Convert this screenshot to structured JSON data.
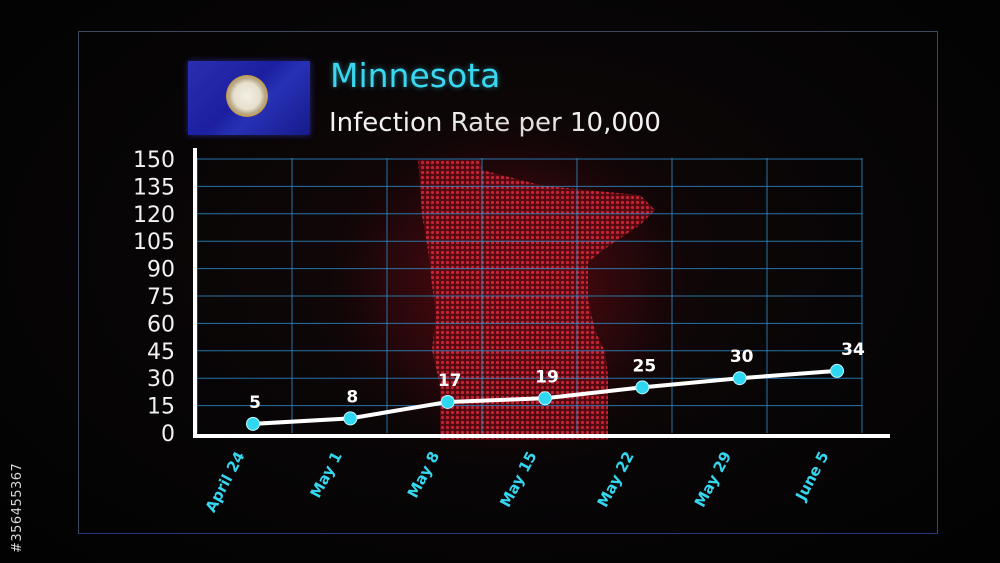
{
  "header": {
    "title": "Minnesota",
    "subtitle": "Infection Rate per 10,000"
  },
  "watermark_id": "#356455367",
  "colors": {
    "accent": "#3ad8f0",
    "grid": "#2e8fd0",
    "map": "#c0182a",
    "point": "#2fd8f0",
    "line": "#ffffff"
  },
  "chart_data": {
    "type": "line",
    "title": "Infection Rate per 10,000",
    "categories": [
      "April 24",
      "May 1",
      "May 8",
      "May 15",
      "May 22",
      "May 29",
      "June 5"
    ],
    "series": [
      {
        "values": [
          5,
          8,
          17,
          19,
          25,
          30,
          34
        ]
      }
    ],
    "yticks": [
      0,
      15,
      30,
      45,
      60,
      75,
      90,
      105,
      120,
      135,
      150
    ],
    "ylim": [
      0,
      150
    ],
    "grid": true,
    "data_labels": true
  }
}
